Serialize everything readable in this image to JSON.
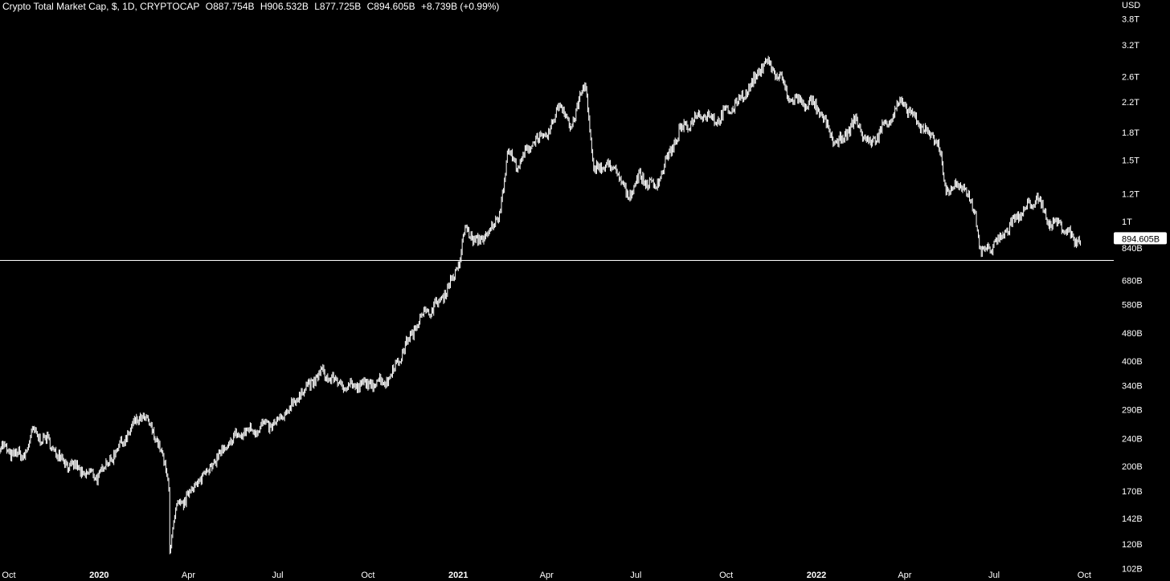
{
  "legend": {
    "title": "Crypto Total Market Cap, $, 1D, CRYPTOCAP",
    "open": "O887.754B",
    "high": "H906.532B",
    "low": "L877.725B",
    "close": "C894.605B",
    "change": "+8.739B (+0.99%)"
  },
  "axis": {
    "currency": "USD",
    "price_label": "894.605B"
  },
  "chart_data": {
    "type": "line",
    "title": "Crypto Total Market Cap, $, 1D, CRYPTOCAP",
    "xlabel": "",
    "ylabel": "",
    "y_scale": "log",
    "ylim": [
      94,
      4300
    ],
    "x_tick_labels": [
      "Oct",
      "2020",
      "Apr",
      "Jul",
      "Oct",
      "2021",
      "Apr",
      "Jul",
      "Oct",
      "2022",
      "Apr",
      "Jul",
      "Oct"
    ],
    "x_ticks": [
      "2019-10-01",
      "2020-01-01",
      "2020-04-01",
      "2020-07-01",
      "2020-10-01",
      "2021-01-01",
      "2021-04-01",
      "2021-07-01",
      "2021-10-01",
      "2022-01-01",
      "2022-04-01",
      "2022-07-01",
      "2022-10-01"
    ],
    "x_range": [
      "2019-09-22",
      "2022-10-31"
    ],
    "y_tick_labels": [
      "3.8T",
      "3.2T",
      "2.6T",
      "2.2T",
      "1.8T",
      "1.5T",
      "1.2T",
      "1T",
      "840B",
      "680B",
      "580B",
      "480B",
      "400B",
      "340B",
      "290B",
      "240B",
      "200B",
      "170B",
      "142B",
      "120B",
      "102B"
    ],
    "y_ticks": [
      3800,
      3200,
      2600,
      2200,
      1800,
      1500,
      1200,
      1000,
      840,
      680,
      580,
      480,
      400,
      340,
      290,
      240,
      200,
      170,
      142,
      120,
      102
    ],
    "horizontal_line": 775,
    "last_value": 894.605,
    "series": [
      {
        "values_unit": "billion USD",
        "x": [
          "2019-09-22",
          "2019-10-01",
          "2019-10-15",
          "2019-10-26",
          "2019-11-10",
          "2019-11-25",
          "2019-12-18",
          "2019-12-31",
          "2020-01-20",
          "2020-02-13",
          "2020-02-28",
          "2020-03-12",
          "2020-03-13",
          "2020-03-20",
          "2020-04-10",
          "2020-04-30",
          "2020-05-20",
          "2020-06-15",
          "2020-07-01",
          "2020-07-27",
          "2020-08-15",
          "2020-09-05",
          "2020-09-25",
          "2020-10-22",
          "2020-11-10",
          "2020-11-24",
          "2020-12-10",
          "2020-12-27",
          "2021-01-02",
          "2021-01-08",
          "2021-01-22",
          "2021-02-10",
          "2021-02-21",
          "2021-03-05",
          "2021-03-13",
          "2021-04-05",
          "2021-04-14",
          "2021-04-25",
          "2021-05-11",
          "2021-05-19",
          "2021-05-23",
          "2021-06-10",
          "2021-06-22",
          "2021-07-05",
          "2021-07-20",
          "2021-08-14",
          "2021-09-06",
          "2021-09-21",
          "2021-10-10",
          "2021-10-31",
          "2021-11-09",
          "2021-11-26",
          "2021-12-04",
          "2021-12-31",
          "2022-01-22",
          "2022-02-10",
          "2022-02-24",
          "2022-03-29",
          "2022-04-15",
          "2022-05-05",
          "2022-05-12",
          "2022-06-01",
          "2022-06-12",
          "2022-06-18",
          "2022-07-05",
          "2022-07-20",
          "2022-08-14",
          "2022-08-26",
          "2022-09-10",
          "2022-09-21",
          "2022-09-28"
        ],
        "values": [
          228,
          220,
          212,
          250,
          235,
          208,
          190,
          188,
          225,
          280,
          245,
          180,
          118,
          150,
          180,
          210,
          245,
          260,
          265,
          330,
          370,
          340,
          340,
          355,
          450,
          540,
          575,
          690,
          770,
          950,
          870,
          1000,
          1580,
          1430,
          1650,
          1800,
          2230,
          1850,
          2500,
          1350,
          1450,
          1420,
          1180,
          1350,
          1250,
          1800,
          2050,
          1950,
          2150,
          2550,
          2900,
          2550,
          2250,
          2150,
          1650,
          1950,
          1650,
          2200,
          1900,
          1700,
          1250,
          1250,
          1050,
          810,
          880,
          1000,
          1170,
          1000,
          970,
          880,
          895
        ]
      }
    ]
  }
}
